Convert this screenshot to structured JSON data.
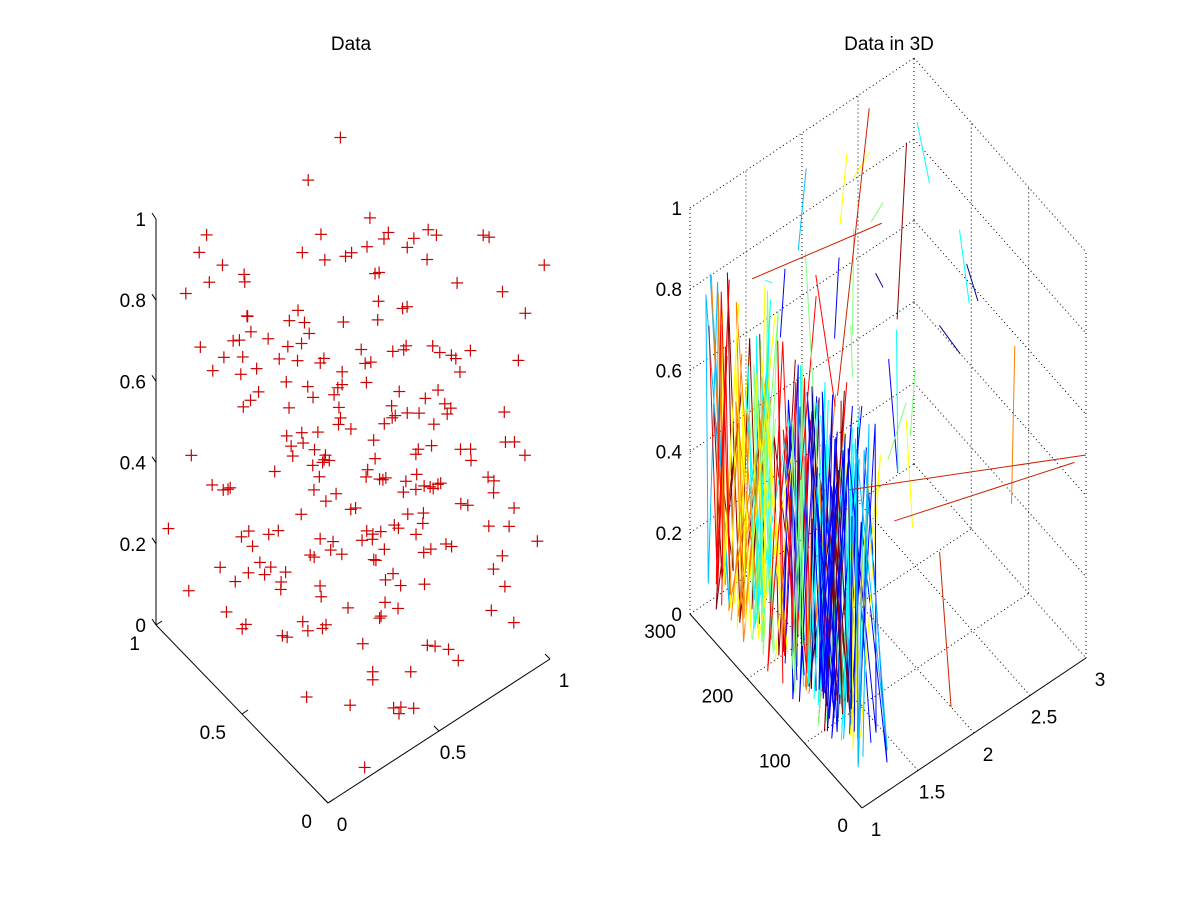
{
  "figure": {
    "background": "#ffffff"
  },
  "chart_data": [
    {
      "type": "scatter",
      "title": "Data",
      "marker": "+",
      "marker_color": "#cc0000",
      "xlabel": "",
      "ylabel": "",
      "zlabel": "",
      "xlim": [
        0,
        1
      ],
      "ylim": [
        0,
        1
      ],
      "zlim": [
        0,
        1
      ],
      "x_ticks": [
        "0",
        "0.5",
        "1"
      ],
      "y_ticks": [
        "0",
        "0.5",
        "1"
      ],
      "z_ticks": [
        "0",
        "0.2",
        "0.4",
        "0.6",
        "0.8",
        "1"
      ],
      "grid": false,
      "view": "3d",
      "points": []
    },
    {
      "type": "line",
      "title": "Data in 3D",
      "xlabel": "",
      "ylabel": "",
      "zlabel": "",
      "xlim": [
        1,
        3
      ],
      "ylim": [
        0,
        300
      ],
      "zlim": [
        0,
        1
      ],
      "x_ticks": [
        "1",
        "1.5",
        "2",
        "2.5",
        "3"
      ],
      "y_ticks": [
        "0",
        "100",
        "200",
        "300"
      ],
      "z_ticks": [
        "0",
        "0.2",
        "0.4",
        "0.6",
        "0.8",
        "1"
      ],
      "grid": true,
      "view": "3d",
      "colormap": [
        "#00008f",
        "#0000ff",
        "#00bfff",
        "#00ffff",
        "#7fff7f",
        "#ffff00",
        "#ff7f00",
        "#ff0000",
        "#8b0000"
      ],
      "lines": []
    }
  ]
}
